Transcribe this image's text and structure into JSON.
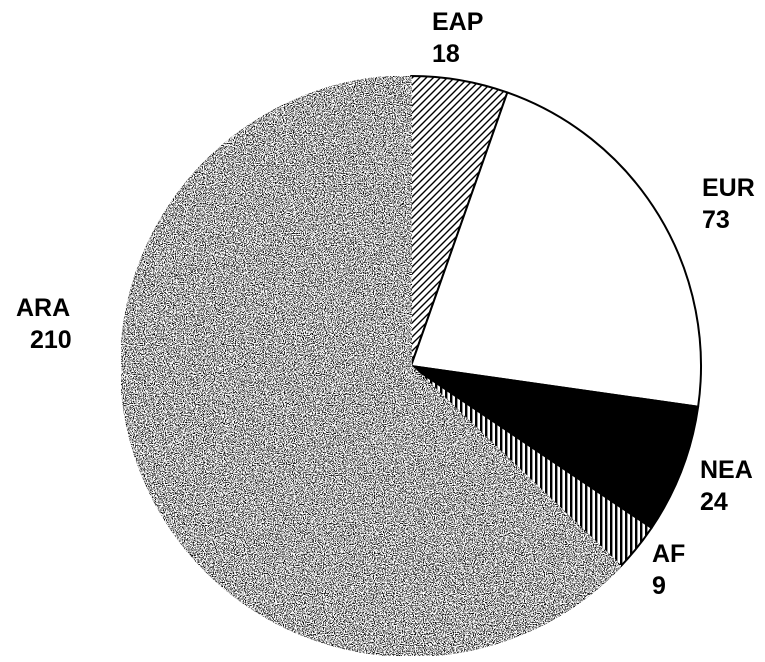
{
  "chart_data": {
    "type": "pie",
    "title": "",
    "start_angle_deg": 0,
    "direction": "clockwise",
    "legend": "none",
    "slices": [
      {
        "label": "EAP",
        "value": 18,
        "fill": "hatch-diagonal",
        "color": "#000000"
      },
      {
        "label": "EUR",
        "value": 73,
        "fill": "solid",
        "color": "#ffffff"
      },
      {
        "label": "NEA",
        "value": 24,
        "fill": "solid",
        "color": "#000000"
      },
      {
        "label": "AF",
        "value": 9,
        "fill": "hatch-vertical",
        "color": "#000000"
      },
      {
        "label": "ARA",
        "value": 210,
        "fill": "speckle",
        "color": "#111111"
      }
    ]
  }
}
